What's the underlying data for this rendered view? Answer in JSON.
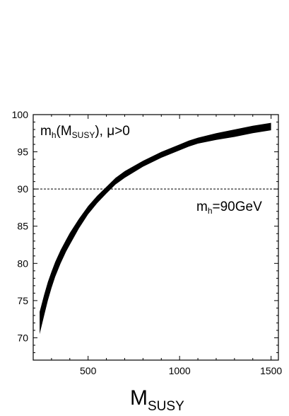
{
  "chart_data": {
    "type": "area",
    "title": "",
    "x": [
      235,
      260,
      280,
      300,
      320,
      350,
      380,
      400,
      450,
      500,
      550,
      600,
      650,
      700,
      800,
      900,
      1000,
      1050,
      1100,
      1200,
      1300,
      1400,
      1500
    ],
    "series": [
      {
        "lower": [
          70.5,
          73.0,
          75.0,
          76.7,
          78.2,
          80.0,
          81.6,
          82.5,
          84.7,
          86.6,
          88.1,
          89.4,
          90.6,
          91.5,
          93.0,
          94.2,
          95.2,
          95.7,
          96.1,
          96.6,
          97.0,
          97.5,
          97.9
        ],
        "upper": [
          73.5,
          75.8,
          77.5,
          78.9,
          80.2,
          81.8,
          83.2,
          84.1,
          86.0,
          87.7,
          89.1,
          90.3,
          91.5,
          92.4,
          93.8,
          95.0,
          96.0,
          96.5,
          96.9,
          97.5,
          98.0,
          98.5,
          98.9
        ]
      }
    ],
    "xlim": [
      200,
      1540
    ],
    "ylim": [
      67,
      100
    ],
    "x_ticks": [
      500,
      1000,
      1500
    ],
    "y_ticks": [
      70,
      75,
      80,
      85,
      90,
      95,
      100
    ],
    "reference_line": {
      "y": 90,
      "style": "dashed"
    },
    "grid": false,
    "band_color": "#000000",
    "xlabel": {
      "main": "M",
      "sub": "SUSY"
    },
    "annotations": {
      "top_left": {
        "pre": "m",
        "sub1": "h",
        "mid": "(M",
        "sub2": "SUSY",
        "post": "), μ>0"
      },
      "line_label": {
        "pre": "m",
        "sub": "h",
        "post": "=90GeV"
      }
    }
  }
}
